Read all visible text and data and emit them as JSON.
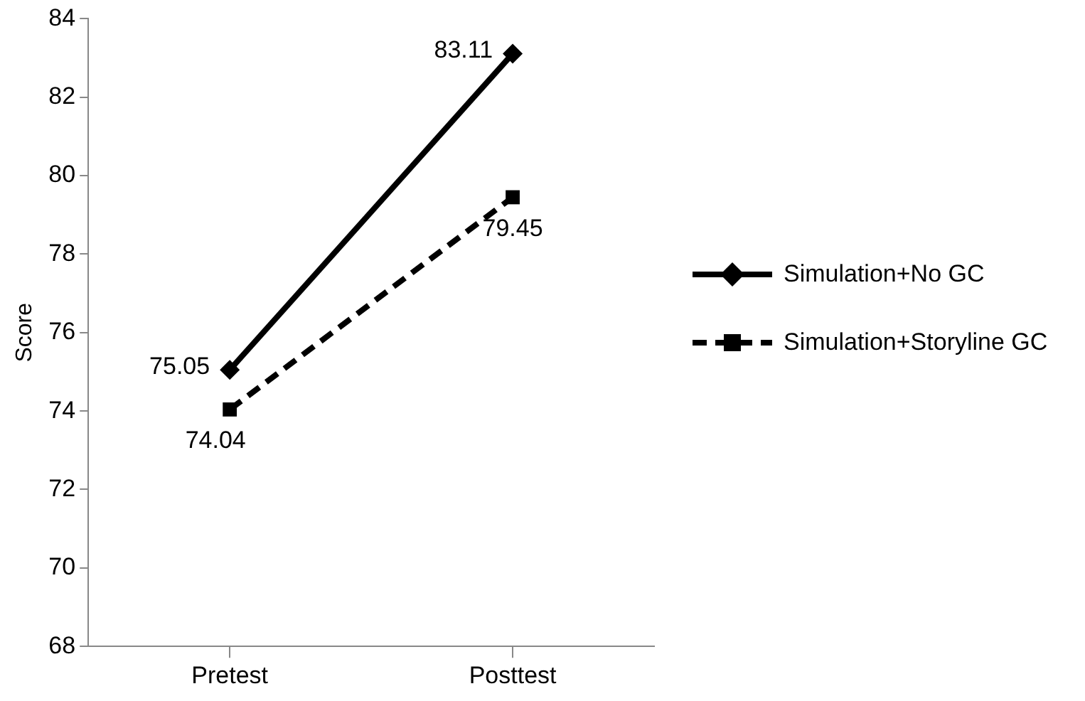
{
  "chart_data": {
    "type": "line",
    "ylabel": "Score",
    "categories": [
      "Pretest",
      "Posttest"
    ],
    "series": [
      {
        "name": "Simulation+No GC",
        "color": "#000000",
        "values": [
          75.05,
          83.11
        ],
        "marker": "diamond",
        "line_style": "solid"
      },
      {
        "name": "Simulation+Storyline GC",
        "color": "#000000",
        "values": [
          74.04,
          79.45
        ],
        "marker": "square",
        "line_style": "dashed"
      }
    ],
    "ylim": [
      68,
      84
    ],
    "yticks": [
      68,
      70,
      72,
      74,
      76,
      78,
      80,
      82,
      84
    ],
    "grid": false,
    "legend": "right",
    "data_labels": true
  }
}
